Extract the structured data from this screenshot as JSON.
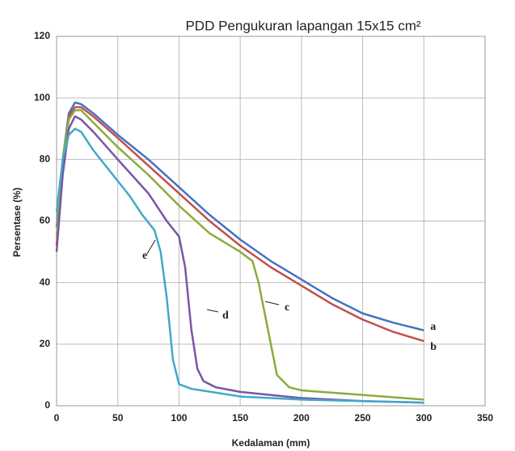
{
  "chart_data": {
    "type": "line",
    "title": "PDD Pengukuran lapangan  15x15 cm²",
    "x_label": "Kedalaman (mm)",
    "y_label": "Persentase  (%)",
    "xlim": [
      0,
      350
    ],
    "xticks": [
      0,
      50,
      100,
      150,
      200,
      250,
      300,
      350
    ],
    "ylim": [
      0,
      120
    ],
    "yticks": [
      0,
      20,
      40,
      60,
      80,
      100,
      120
    ],
    "grid": true,
    "series": [
      {
        "name": "a",
        "color": "#4472c4",
        "x": [
          0,
          5,
          10,
          15,
          20,
          30,
          50,
          75,
          100,
          125,
          150,
          175,
          200,
          225,
          250,
          275,
          300
        ],
        "values": [
          58,
          80,
          95,
          98.5,
          98,
          95,
          88,
          80,
          71,
          62,
          54,
          47,
          41,
          35,
          30,
          27,
          24.5
        ]
      },
      {
        "name": "b",
        "color": "#c0504d",
        "x": [
          0,
          5,
          10,
          15,
          20,
          30,
          50,
          75,
          100,
          125,
          150,
          175,
          200,
          225,
          250,
          275,
          300
        ],
        "values": [
          52,
          78,
          94,
          97,
          97,
          94,
          87,
          78,
          69,
          60,
          52,
          45,
          39,
          33,
          28,
          24,
          21
        ]
      },
      {
        "name": "c",
        "color": "#8aac3c",
        "x": [
          0,
          5,
          10,
          15,
          20,
          30,
          50,
          75,
          100,
          125,
          150,
          160,
          165,
          170,
          175,
          180,
          190,
          200,
          250,
          300
        ],
        "values": [
          55,
          80,
          93,
          96,
          96,
          92,
          84,
          75,
          65,
          56,
          50,
          47,
          40,
          30,
          20,
          10,
          6,
          5,
          3.5,
          2
        ]
      },
      {
        "name": "d",
        "color": "#7a55a8",
        "x": [
          0,
          5,
          10,
          15,
          20,
          30,
          50,
          75,
          90,
          100,
          105,
          110,
          115,
          120,
          130,
          150,
          200,
          250,
          300
        ],
        "values": [
          50,
          75,
          90,
          94,
          93,
          89,
          80,
          69,
          60,
          55,
          45,
          25,
          12,
          8,
          6,
          4.5,
          2.5,
          1.5,
          1
        ]
      },
      {
        "name": "e",
        "color": "#3fa9c9",
        "x": [
          0,
          5,
          10,
          15,
          20,
          30,
          50,
          60,
          70,
          80,
          85,
          90,
          95,
          100,
          110,
          150,
          200,
          300
        ],
        "values": [
          63,
          80,
          88,
          90,
          89,
          83,
          73,
          68,
          62,
          57,
          50,
          35,
          15,
          7,
          5.5,
          3,
          2,
          1
        ]
      }
    ]
  }
}
